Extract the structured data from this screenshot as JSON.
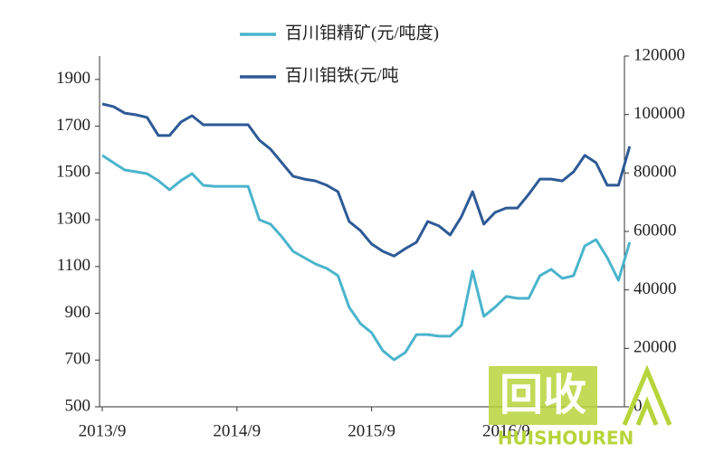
{
  "chart_data": {
    "type": "line",
    "categories": [
      "2013/9",
      null,
      null,
      null,
      null,
      null,
      null,
      null,
      null,
      null,
      null,
      null,
      "2014/9",
      null,
      null,
      null,
      null,
      null,
      null,
      null,
      null,
      null,
      null,
      null,
      "2015/9",
      null,
      null,
      null,
      null,
      null,
      null,
      null,
      null,
      null,
      null,
      null,
      "2016/9",
      null,
      null,
      null,
      null,
      null,
      null,
      null,
      null,
      null,
      null,
      null
    ],
    "series": [
      {
        "name": "百川钼精矿(元/吨度)",
        "color": "#4ab4cc",
        "axis": "y",
        "values": [
          1575,
          1544,
          1513,
          1505,
          1497,
          1467,
          1428,
          1467,
          1497,
          1447,
          1443,
          1443,
          1443,
          1443,
          1300,
          1281,
          1227,
          1165,
          1138,
          1111,
          1092,
          1061,
          926,
          856,
          817,
          740,
          701,
          732,
          809,
          809,
          802,
          802,
          848,
          1080,
          887,
          926,
          972,
          964,
          964,
          1061,
          1088,
          1049,
          1061,
          1188,
          1215,
          1138,
          1041,
          1204
        ]
      },
      {
        "name": "百川钼铁(元/吨",
        "color": "#2e5a96",
        "axis": "y2",
        "values": [
          103600,
          102700,
          100500,
          99900,
          99000,
          92800,
          92800,
          97400,
          99600,
          96500,
          96500,
          96500,
          96500,
          96500,
          91200,
          88100,
          83500,
          78900,
          77900,
          77300,
          75800,
          73600,
          63400,
          60300,
          55700,
          53200,
          51600,
          54100,
          56300,
          63400,
          61900,
          58800,
          65000,
          73600,
          62500,
          66500,
          68000,
          68000,
          72700,
          77900,
          77900,
          77300,
          80400,
          86000,
          83500,
          75800,
          75800,
          89100
        ]
      }
    ],
    "ylim": [
      500,
      2000
    ],
    "yticks": [
      500,
      700,
      900,
      1100,
      1300,
      1500,
      1700,
      1900
    ],
    "y2lim": [
      0,
      120000
    ],
    "y2ticks": [
      0,
      20000,
      40000,
      60000,
      80000,
      100000,
      120000
    ],
    "legend": "top"
  },
  "watermark": {
    "logo": "回收",
    "text": "HUISHOUREN"
  }
}
